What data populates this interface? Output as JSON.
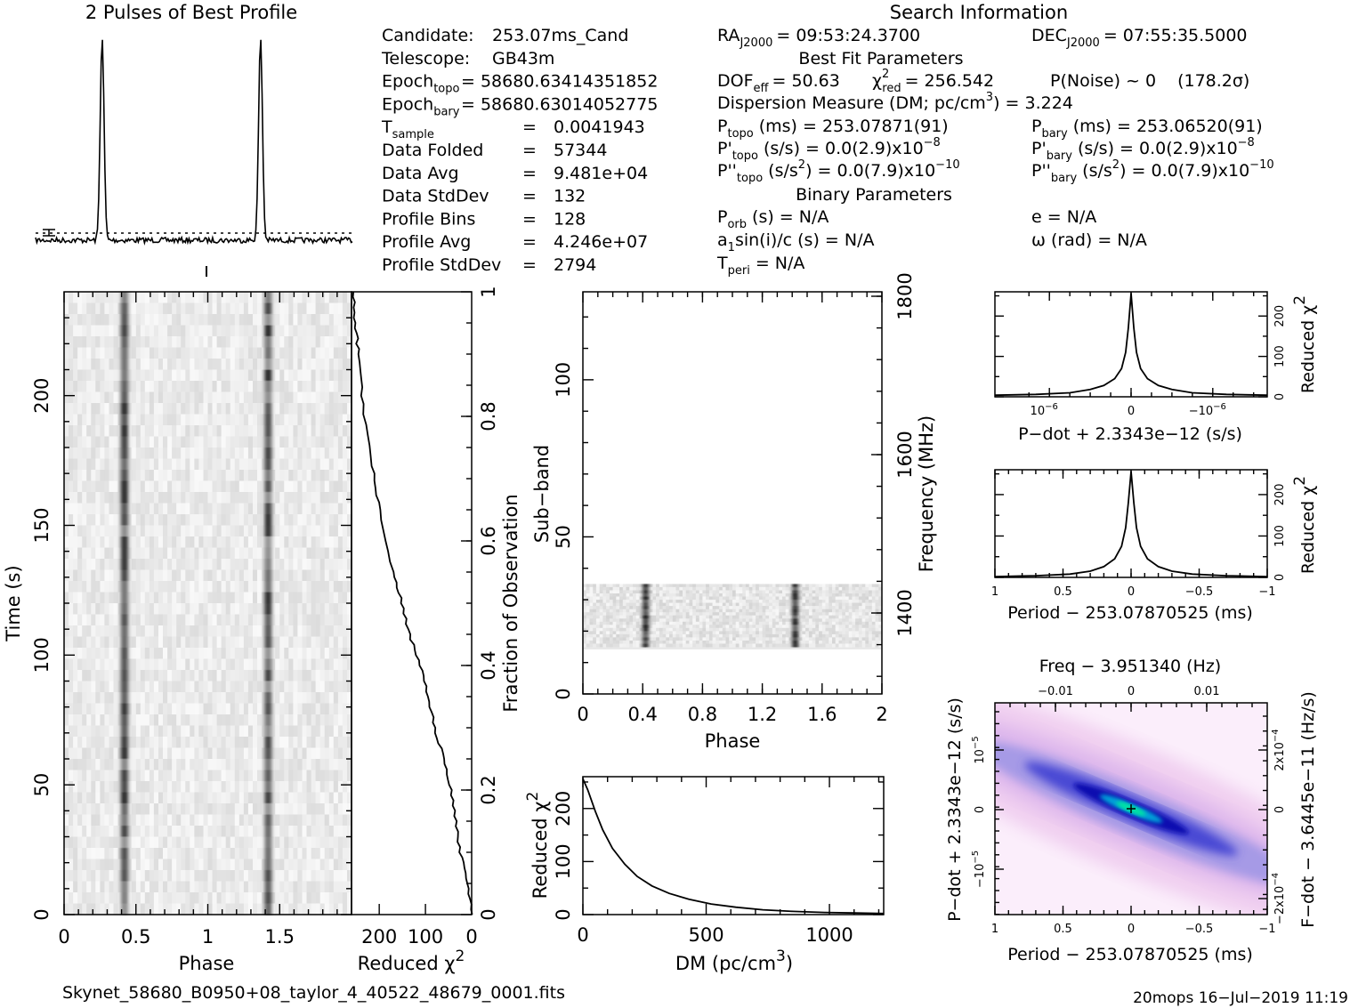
{
  "titles": {
    "best_profile": "2 Pulses of Best Profile",
    "search_info": "Search Information",
    "best_fit": "Best Fit Parameters",
    "binary": "Binary Parameters"
  },
  "info_col1": [
    {
      "label": "Candidate:",
      "value": "253.07ms_Cand"
    },
    {
      "label": "Telescope:",
      "value": "GB43m"
    },
    {
      "label": "Epoch",
      "sub": "topo",
      "value": "= 58680.63414351852"
    },
    {
      "label": "Epoch",
      "sub": "bary",
      "value": "= 58680.63014052775"
    },
    {
      "label": "T",
      "sub": "sample",
      "eq": "=",
      "value": "0.0041943"
    },
    {
      "label": "Data Folded",
      "eq": "=",
      "value": "57344"
    },
    {
      "label": "Data Avg",
      "eq": "=",
      "value": "9.481e+04"
    },
    {
      "label": "Data StdDev",
      "eq": "=",
      "value": "132"
    },
    {
      "label": "Profile Bins",
      "eq": "=",
      "value": "128"
    },
    {
      "label": "Profile Avg",
      "eq": "=",
      "value": "4.246e+07"
    },
    {
      "label": "Profile StdDev",
      "eq": "=",
      "value": "2794"
    }
  ],
  "ra": {
    "label": "RA",
    "sub": "J2000",
    "value": "= 09:53:24.3700"
  },
  "dec": {
    "label": "DEC",
    "sub": "J2000",
    "value": "= 07:55:35.5000"
  },
  "dof": {
    "label": "DOF",
    "sub": "eff",
    "value": "= 50.63"
  },
  "chi2": {
    "label": "χ",
    "sup": "2",
    "sub": "red",
    "value": "= 256.542"
  },
  "pnoise": {
    "label": "P(Noise) ~ 0",
    "sigma": "(178.2σ)"
  },
  "dm_line": {
    "pre": "Dispersion Measure (DM; pc/cm",
    "sup": "3",
    "post": ") = 3.224"
  },
  "ptopo": {
    "label": "P",
    "sub": "topo",
    "value": "(ms) =  253.07871(91)"
  },
  "pbary": {
    "label": "P",
    "sub": "bary",
    "value": "(ms) =  253.06520(91)"
  },
  "pdtopo": {
    "label": "P'",
    "sub": "topo",
    "value": "(s/s) = 0.0(2.9)x10",
    "sup": "−8"
  },
  "pdbary": {
    "label": "P'",
    "sub": "bary",
    "value": "(s/s) = 0.0(2.9)x10",
    "sup": "−8"
  },
  "pddtopo": {
    "label": "P''",
    "sub": "topo",
    "value": "(s/s",
    "sup1": "2",
    "value2": ") = 0.0(7.9)x10",
    "sup": "−10"
  },
  "pddbary": {
    "label": "P''",
    "sub": "bary",
    "value": "(s/s",
    "sup1": "2",
    "value2": ") = 0.0(7.9)x10",
    "sup": "−10"
  },
  "porb": {
    "label": "P",
    "sub": "orb",
    "value": "(s) = N/A"
  },
  "ecc": {
    "value": "e = N/A"
  },
  "a1": {
    "pre": "a",
    "sub": "1",
    "value": "sin(i)/c (s) = N/A"
  },
  "omega": {
    "value": "ω (rad) = N/A"
  },
  "tperi": {
    "label": "T",
    "sub": "peri",
    "value": "= N/A"
  },
  "footer": {
    "filename": "Skynet_58680_B0950+08_taylor_4_40522_48679_0001.fits",
    "stamp": "20mops  16−Jul−2019 11:19"
  },
  "colors": {
    "ink": "#000000",
    "hot": "#00e6a0",
    "cool": "#1a1ab4",
    "pale": "#f3dcf3"
  },
  "chart_data": [
    {
      "type": "line",
      "name": "profile",
      "title": "2 Pulses of Best Profile",
      "pulse_phase": [
        0.42,
        1.42
      ],
      "xlim": [
        0,
        2
      ]
    },
    {
      "type": "heatmap",
      "name": "time-phase",
      "xlabel": "Phase",
      "ylabel": "Time (s)",
      "xlim": [
        0,
        2
      ],
      "ylim": [
        0,
        240
      ],
      "xticks": [
        "0",
        "0.5",
        "1",
        "1.5"
      ],
      "yticks": [
        "0",
        "50",
        "100",
        "150",
        "200"
      ],
      "pulse_phase": [
        0.42,
        1.42
      ]
    },
    {
      "type": "line",
      "name": "chi2-vs-time",
      "xlabel": "Reduced χ",
      "xlabel_sup": "2",
      "ylabel": "Fraction of Observation",
      "xticks": [
        "200",
        "100",
        "0"
      ],
      "yticks": [
        "0",
        "0.2",
        "0.4",
        "0.6",
        "0.8",
        "1"
      ],
      "xlim": [
        260,
        0
      ],
      "ylim": [
        0,
        1
      ],
      "x": [
        0,
        10,
        25,
        35,
        45,
        60,
        80,
        95,
        110,
        135,
        150,
        170,
        200,
        215,
        235,
        245,
        252,
        256
      ],
      "y": [
        0,
        0.05,
        0.1,
        0.15,
        0.2,
        0.25,
        0.3,
        0.35,
        0.4,
        0.45,
        0.5,
        0.55,
        0.65,
        0.72,
        0.82,
        0.9,
        0.95,
        1
      ]
    },
    {
      "type": "heatmap",
      "name": "subband-phase",
      "xlabel": "Phase",
      "ylabel": "Sub−band",
      "ylabel2": "Frequency (MHz)",
      "xlim": [
        0,
        2
      ],
      "ylim": [
        0,
        128
      ],
      "xticks": [
        "0",
        "0.4",
        "0.8",
        "1.2",
        "1.6",
        "2"
      ],
      "yticks": [
        "0",
        "50",
        "100"
      ],
      "y2ticks": [
        "1400",
        "1600",
        "1800"
      ],
      "band": [
        15,
        35
      ],
      "pulse_phase": [
        0.42,
        1.42
      ]
    },
    {
      "type": "line",
      "name": "dm-chi2",
      "xlabel": "DM (pc/cm",
      "xlabel_sup": "3",
      "xlabel_post": ")",
      "ylabel": "Reduced χ",
      "ylabel_sup": "2",
      "xlim": [
        0,
        1220
      ],
      "ylim": [
        0,
        260
      ],
      "xticks": [
        "0",
        "500",
        "1000"
      ],
      "yticks": [
        "0",
        "100",
        "200"
      ],
      "x": [
        0,
        20,
        50,
        80,
        120,
        170,
        220,
        280,
        350,
        430,
        520,
        620,
        730,
        850,
        980,
        1100,
        1220
      ],
      "y": [
        256,
        235,
        195,
        160,
        125,
        95,
        72,
        54,
        40,
        29,
        20,
        14,
        9,
        6,
        4,
        3,
        2
      ]
    },
    {
      "type": "line",
      "name": "pdot-chi2",
      "xlabel": "P−dot + 2.3343e−12 (s/s)",
      "ylabel": "Reduced χ",
      "ylabel_sup": "2",
      "xticks": [
        "10",
        "0",
        "−10"
      ],
      "xtick_sup": "−6",
      "yticks": [
        "0",
        "100",
        "200"
      ],
      "xlim": [
        1,
        -1
      ],
      "ylim": [
        0,
        260
      ],
      "x": [
        1,
        0.7,
        0.45,
        0.3,
        0.2,
        0.12,
        0.07,
        0.04,
        0.02,
        0,
        -0.02,
        -0.04,
        -0.07,
        -0.12,
        -0.2,
        -0.3,
        -0.45,
        -0.7,
        -1
      ],
      "y": [
        4,
        6,
        10,
        18,
        28,
        45,
        70,
        110,
        170,
        256,
        170,
        110,
        70,
        45,
        28,
        18,
        10,
        6,
        4
      ]
    },
    {
      "type": "line",
      "name": "period-chi2",
      "xlabel": "Period − 253.07870525 (ms)",
      "ylabel": "Reduced χ",
      "ylabel_sup": "2",
      "xticks": [
        "1",
        "0.5",
        "0",
        "−0.5",
        "−1"
      ],
      "yticks": [
        "0",
        "100",
        "200"
      ],
      "xlim": [
        1,
        -1
      ],
      "ylim": [
        0,
        260
      ],
      "x": [
        1,
        0.7,
        0.45,
        0.3,
        0.2,
        0.12,
        0.07,
        0.04,
        0.02,
        0,
        -0.02,
        -0.04,
        -0.07,
        -0.12,
        -0.2,
        -0.3,
        -0.45,
        -0.7,
        -1
      ],
      "y": [
        2,
        4,
        8,
        15,
        26,
        45,
        75,
        120,
        180,
        256,
        180,
        120,
        75,
        45,
        26,
        15,
        8,
        4,
        2
      ]
    },
    {
      "type": "heatmap",
      "name": "period-pdot",
      "title": "Freq − 3.951340 (Hz)",
      "xlabel": "Period − 253.07870525 (ms)",
      "ylabel": "P−dot + 2.3343e−12 (s/s)",
      "ylabel2": "F−dot − 3.6445e−11 (Hz/s)",
      "xticks": [
        "1",
        "0.5",
        "0",
        "−0.5",
        "−1"
      ],
      "x2ticks": [
        "−0.01",
        "0",
        "0.01"
      ],
      "yticks": [
        "10",
        "0",
        "10"
      ],
      "ytick_sups": [
        "−5",
        "",
        "−5"
      ],
      "y_prefix": [
        "",
        "",
        "−"
      ],
      "y2ticks": [
        "2x10",
        "0",
        "−2x10"
      ],
      "y2tick_sup": "−4"
    }
  ]
}
